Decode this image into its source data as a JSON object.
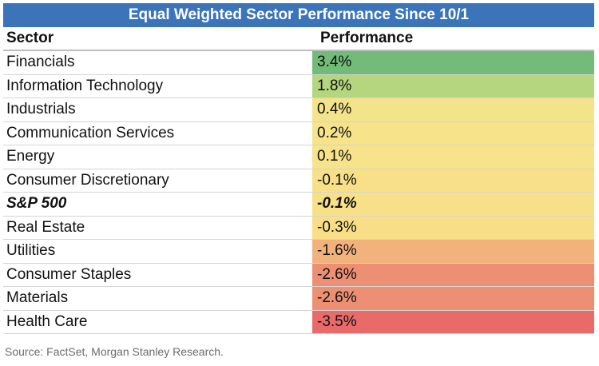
{
  "title": "Equal Weighted Sector Performance Since 10/1",
  "headers": {
    "sector": "Sector",
    "performance": "Performance"
  },
  "source": "Source: FactSet, Morgan Stanley Research.",
  "chart_data": {
    "type": "table",
    "title": "Equal Weighted Sector Performance Since 10/1",
    "columns": [
      "Sector",
      "Performance"
    ],
    "categories": [
      "Financials",
      "Information Technology",
      "Industrials",
      "Communication Services",
      "Energy",
      "Consumer Discretionary",
      "S&P 500",
      "Real Estate",
      "Utilities",
      "Consumer Staples",
      "Materials",
      "Health Care"
    ],
    "values": [
      3.4,
      1.8,
      0.4,
      0.2,
      0.1,
      -0.1,
      -0.1,
      -0.3,
      -1.6,
      -2.6,
      -2.6,
      -3.5
    ],
    "labels": [
      "3.4%",
      "1.8%",
      "0.4%",
      "0.2%",
      "0.1%",
      "-0.1%",
      "-0.1%",
      "-0.3%",
      "-1.6%",
      "-2.6%",
      "-2.6%",
      "-3.5%"
    ],
    "colors": [
      "#73bb78",
      "#b5d57f",
      "#f3e38a",
      "#f6e38a",
      "#f7e38a",
      "#f8e088",
      "#f8e088",
      "#f8df87",
      "#f2b27c",
      "#ec8f73",
      "#ec8f73",
      "#e86b6a"
    ],
    "highlight_index": 6
  }
}
